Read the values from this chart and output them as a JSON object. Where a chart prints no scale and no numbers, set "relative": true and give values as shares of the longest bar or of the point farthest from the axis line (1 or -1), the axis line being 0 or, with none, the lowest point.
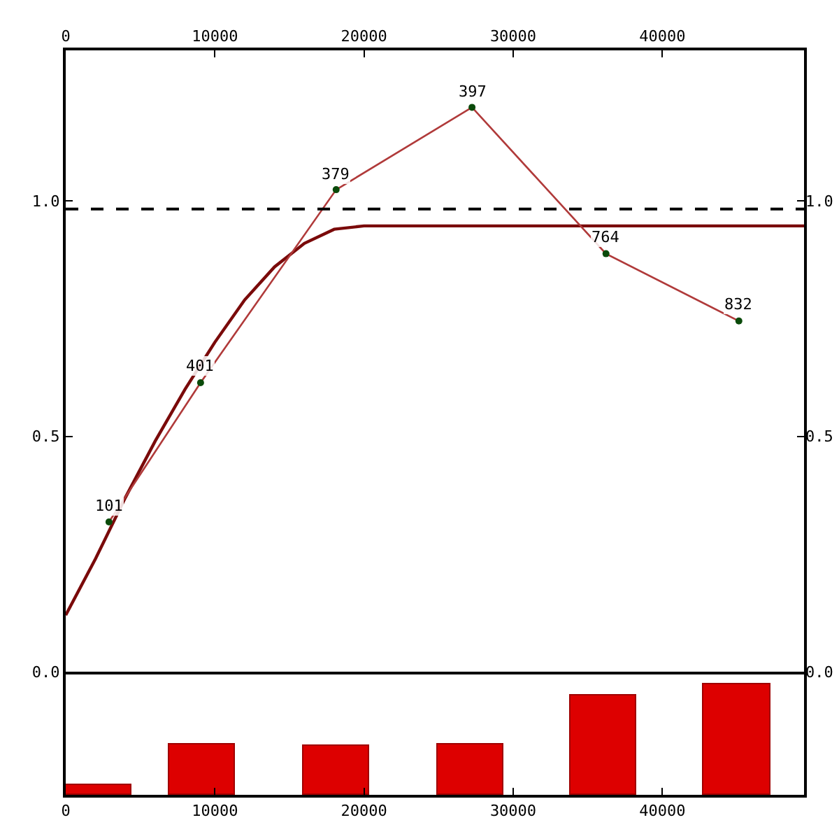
{
  "chart_data": [
    {
      "type": "line",
      "xlim": [
        0,
        49500
      ],
      "xticks": [
        0,
        10000,
        20000,
        30000,
        40000
      ],
      "ylim": [
        0,
        1.32
      ],
      "yticks": [
        {
          "value": 0,
          "label": "0.0"
        },
        {
          "value": 0.5,
          "label": "0.5"
        },
        {
          "value": 1,
          "label": "1.0"
        }
      ],
      "y2lim": [
        0,
        1.32
      ],
      "y2ticks": [
        {
          "value": 0,
          "label": "0.0"
        },
        {
          "value": 0.5,
          "label": "0.5"
        },
        {
          "value": 1,
          "label": "1.0"
        }
      ],
      "grid": false,
      "series": [
        {
          "color": "#7a0a0a",
          "marker": "none",
          "line_style": "solid",
          "x": [
            0,
            2000,
            4000,
            6000,
            8000,
            10000,
            12000,
            14000,
            16000,
            18000,
            20000,
            49500
          ],
          "values": [
            0.12,
            0.24,
            0.37,
            0.49,
            0.6,
            0.7,
            0.79,
            0.86,
            0.91,
            0.94,
            0.947,
            0.947
          ]
        },
        {
          "color": "#b03a3a",
          "colors": [
            "#0a4a0a",
            "#0a4a0a",
            "#0a4a0a",
            "#0a4a0a",
            "#0a4a0a",
            "#0a4a0a"
          ],
          "marker": "circle",
          "line_style": "solid",
          "x": [
            2900,
            9040,
            18130,
            27240,
            36220,
            45130
          ],
          "values": [
            0.318,
            0.614,
            1.024,
            1.199,
            0.888,
            0.745
          ]
        }
      ],
      "annotations": [
        {
          "text": "101",
          "x": 2900,
          "y": 0.318
        },
        {
          "text": "401",
          "x": 9040,
          "y": 0.614
        },
        {
          "text": "379",
          "x": 18130,
          "y": 1.024
        },
        {
          "text": "397",
          "x": 27240,
          "y": 1.199
        },
        {
          "text": "764",
          "x": 36220,
          "y": 0.888
        },
        {
          "text": "832",
          "x": 45130,
          "y": 0.745
        }
      ],
      "ref_lines": [
        {
          "axis": "y",
          "value": 0.983,
          "color": "#000000",
          "line_style": "dashed"
        }
      ]
    },
    {
      "type": "bar",
      "relative": true,
      "tick_labels": "x",
      "xlim": [
        0,
        49500
      ],
      "xticks": [
        0,
        10000,
        20000,
        30000,
        40000
      ],
      "grid": false,
      "color": "#dd0000",
      "x": [
        2200,
        9100,
        18100,
        27100,
        36040,
        45000
      ],
      "values": [
        0.09,
        0.46,
        0.44,
        0.46,
        0.91,
        1
      ]
    }
  ]
}
